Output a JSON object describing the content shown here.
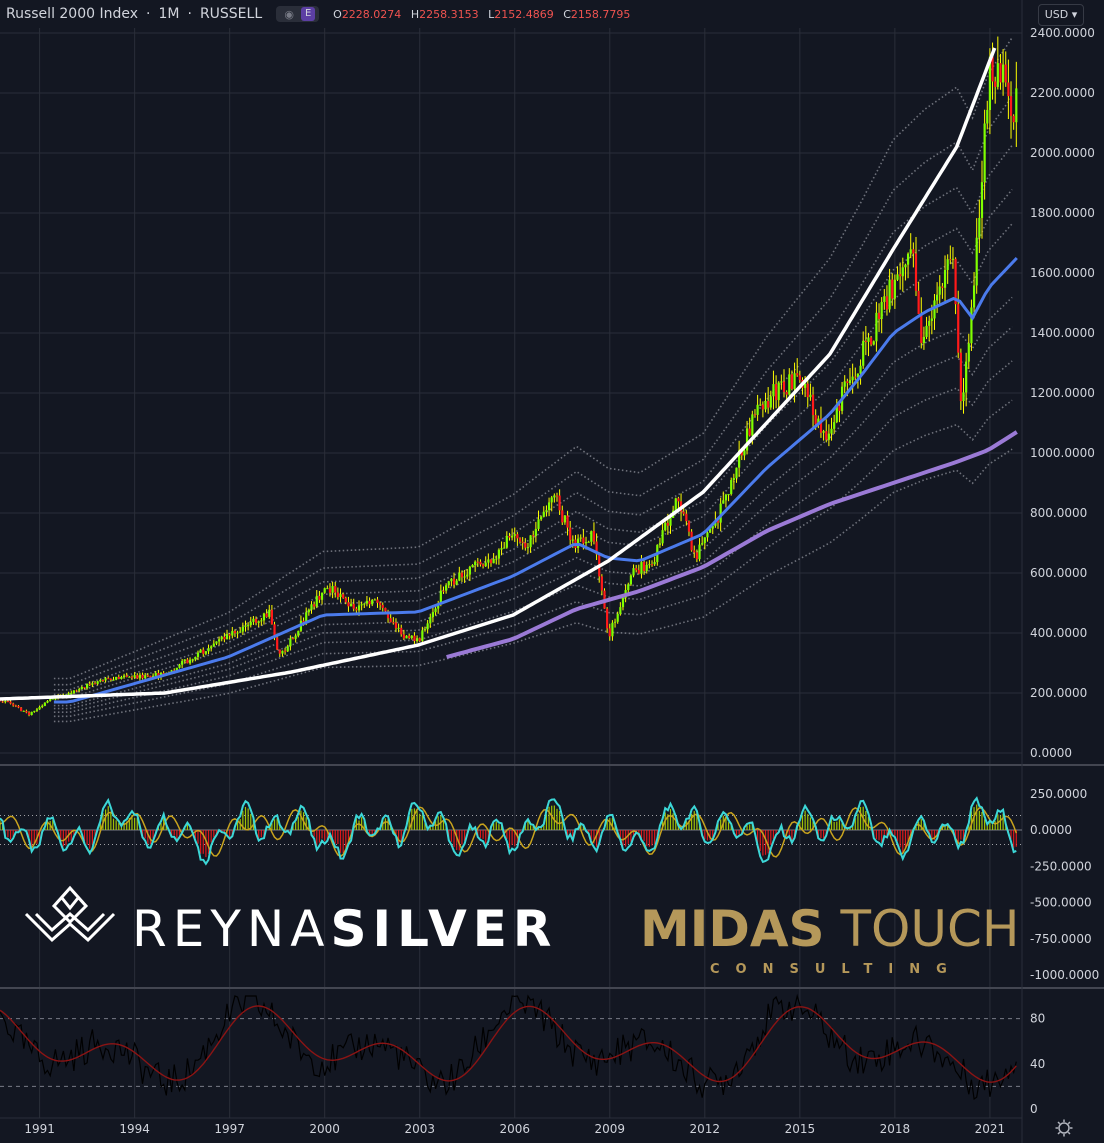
{
  "header": {
    "title": "Russell 2000 Index",
    "interval": "1M",
    "exchange": "RUSSELL",
    "badge": "E",
    "open_label": "O",
    "open": "2228.0274",
    "high_label": "H",
    "high": "2258.3153",
    "low_label": "L",
    "low": "2152.4869",
    "close_label": "C",
    "close": "2158.7795"
  },
  "currency": "USD",
  "logos": {
    "reyna_thin": "REYNA",
    "reyna_bold": "SILVER",
    "midas_bold": "MIDAS",
    "midas_thin": " TOUCH",
    "consulting": "CONSULTING"
  },
  "colors": {
    "background": "#131722",
    "up": "#7fff00",
    "down": "#ff1a1a",
    "wick": "#ffff00",
    "ma_blue": "#4b7bec",
    "ma_purple": "#9b7ad6",
    "curve": "#ffffff",
    "osc_cyan": "#3cd7d7",
    "osc_gold": "#c8a31e",
    "osc_hist": "#b8e000",
    "stoch_black": "#000000",
    "stoch_red": "#8b1414"
  },
  "chart_data": [
    {
      "type": "candlestick",
      "title": "Russell 2000 Index",
      "interval": "1M",
      "ylim": [
        0,
        2400
      ],
      "y_ticks": [
        "2400.0000",
        "2200.0000",
        "2000.0000",
        "1800.0000",
        "1600.0000",
        "1400.0000",
        "1200.0000",
        "1000.0000",
        "800.0000",
        "600.0000",
        "400.0000",
        "200.0000",
        "0.0000"
      ],
      "x_ticks": [
        "1991",
        "1994",
        "1997",
        "2000",
        "2003",
        "2006",
        "2009",
        "2012",
        "2015",
        "2018",
        "2021"
      ],
      "price_anchors": [
        [
          1990.0,
          175
        ],
        [
          1990.8,
          130
        ],
        [
          1991.5,
          180
        ],
        [
          1993.0,
          240
        ],
        [
          1994.0,
          255
        ],
        [
          1995.0,
          260
        ],
        [
          1996.0,
          320
        ],
        [
          1997.0,
          390
        ],
        [
          1998.4,
          470
        ],
        [
          1998.7,
          320
        ],
        [
          1999.2,
          400
        ],
        [
          2000.2,
          560
        ],
        [
          2001.0,
          480
        ],
        [
          2001.5,
          510
        ],
        [
          2002.0,
          480
        ],
        [
          2002.6,
          390
        ],
        [
          2003.1,
          375
        ],
        [
          2003.9,
          550
        ],
        [
          2004.8,
          620
        ],
        [
          2005.5,
          640
        ],
        [
          2006.0,
          730
        ],
        [
          2006.5,
          690
        ],
        [
          2007.4,
          850
        ],
        [
          2008.0,
          700
        ],
        [
          2008.6,
          720
        ],
        [
          2009.1,
          390
        ],
        [
          2009.8,
          600
        ],
        [
          2010.5,
          640
        ],
        [
          2011.3,
          860
        ],
        [
          2011.8,
          650
        ],
        [
          2012.6,
          800
        ],
        [
          2013.6,
          1100
        ],
        [
          2014.3,
          1200
        ],
        [
          2015.2,
          1250
        ],
        [
          2015.9,
          1050
        ],
        [
          2016.6,
          1220
        ],
        [
          2017.5,
          1420
        ],
        [
          2018.7,
          1720
        ],
        [
          2018.95,
          1350
        ],
        [
          2019.6,
          1580
        ],
        [
          2020.0,
          1660
        ],
        [
          2020.2,
          1150
        ],
        [
          2020.6,
          1500
        ],
        [
          2021.1,
          2280
        ],
        [
          2021.6,
          2230
        ],
        [
          2021.9,
          2158
        ]
      ],
      "ma_blue_anchors": [
        [
          1992.0,
          170
        ],
        [
          1997.0,
          320
        ],
        [
          2000.0,
          460
        ],
        [
          2003.0,
          470
        ],
        [
          2006.0,
          590
        ],
        [
          2008.0,
          700
        ],
        [
          2009.0,
          650
        ],
        [
          2010.0,
          640
        ],
        [
          2012.0,
          730
        ],
        [
          2014.0,
          950
        ],
        [
          2016.0,
          1130
        ],
        [
          2017.0,
          1260
        ],
        [
          2018.0,
          1400
        ],
        [
          2019.0,
          1470
        ],
        [
          2020.0,
          1520
        ],
        [
          2020.5,
          1450
        ],
        [
          2021.0,
          1550
        ],
        [
          2021.9,
          1650
        ]
      ],
      "ma_purple_anchors": [
        [
          2003.9,
          320
        ],
        [
          2006.0,
          380
        ],
        [
          2008.0,
          480
        ],
        [
          2010.0,
          540
        ],
        [
          2012.0,
          620
        ],
        [
          2014.0,
          740
        ],
        [
          2016.0,
          830
        ],
        [
          2018.0,
          900
        ],
        [
          2020.0,
          970
        ],
        [
          2021.0,
          1010
        ],
        [
          2021.9,
          1070
        ]
      ],
      "curve_anchors": [
        [
          1989.8,
          180
        ],
        [
          1995.0,
          200
        ],
        [
          1999.0,
          270
        ],
        [
          2003.0,
          360
        ],
        [
          2006.0,
          460
        ],
        [
          2009.0,
          640
        ],
        [
          2012.0,
          870
        ],
        [
          2014.0,
          1100
        ],
        [
          2016.0,
          1330
        ],
        [
          2018.0,
          1680
        ],
        [
          2020.0,
          2020
        ],
        [
          2021.2,
          2350
        ]
      ]
    },
    {
      "type": "line",
      "name": "oscillator",
      "y_ticks": [
        "250.0000",
        "0.0000",
        "-250.0000",
        "-500.0000",
        "-750.0000",
        "-1000.0000"
      ],
      "ylim": [
        -1000,
        280
      ]
    },
    {
      "type": "line",
      "name": "stochastic",
      "y_ticks": [
        "80",
        "40",
        "0"
      ],
      "ylim": [
        0,
        105
      ],
      "levels": [
        80,
        20
      ]
    }
  ]
}
